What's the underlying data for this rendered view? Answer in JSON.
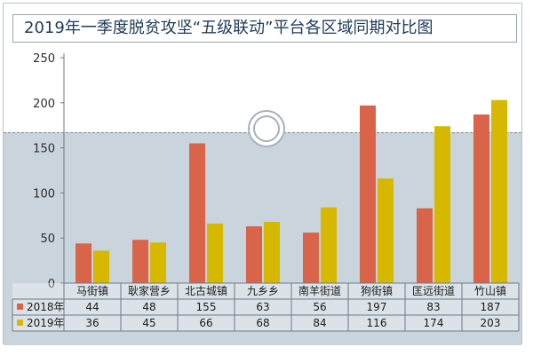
{
  "chart_data": {
    "type": "bar",
    "title": "2019年一季度脱贫攻坚“五级联动”平台各区域同期对比图",
    "categories": [
      "马街镇",
      "耿家营乡",
      "北古城镇",
      "九乡乡",
      "南羊街道",
      "狗街镇",
      "匡远街道",
      "竹山镇"
    ],
    "series": [
      {
        "name": "2018年",
        "color": "#d9644a",
        "values": [
          44,
          48,
          155,
          63,
          56,
          197,
          83,
          187
        ]
      },
      {
        "name": "2019年",
        "color": "#d6b800",
        "values": [
          36,
          45,
          66,
          68,
          84,
          116,
          174,
          203
        ]
      }
    ],
    "yticks": [
      0,
      50,
      100,
      150,
      200,
      250
    ],
    "ylim": [
      0,
      250
    ],
    "grid": false,
    "legend": "data-table-left"
  }
}
